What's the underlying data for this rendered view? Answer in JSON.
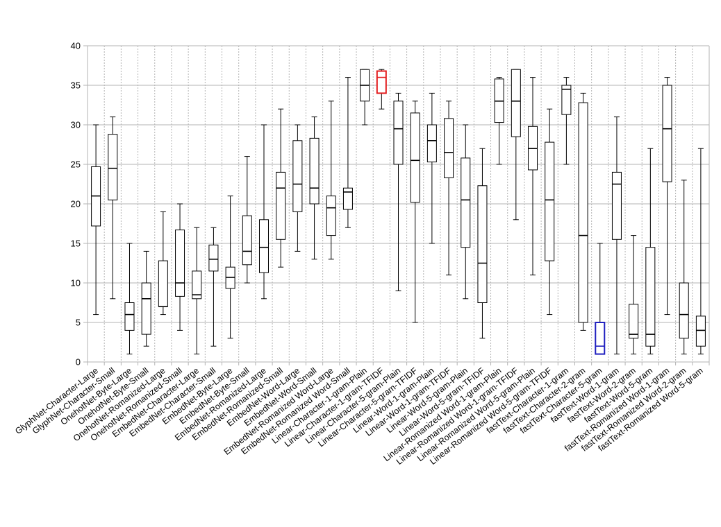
{
  "chart_data": {
    "type": "box",
    "ylim": [
      0,
      40
    ],
    "yticks": [
      0,
      5,
      10,
      15,
      20,
      25,
      30,
      35,
      40
    ],
    "grid": true,
    "highlight_colors": {
      "red": "#e31a1c",
      "blue": "#1f1fbf",
      "default": "#000000"
    },
    "boxes": [
      {
        "label": "GlyphNet-Character-Large",
        "min": 6,
        "q1": 17.2,
        "median": 21,
        "q3": 24.7,
        "max": 30
      },
      {
        "label": "GlyphNet-Character-Small",
        "min": 8,
        "q1": 20.5,
        "median": 24.5,
        "q3": 28.8,
        "max": 31
      },
      {
        "label": "OnehotNet-Byte-Large",
        "min": 1,
        "q1": 4,
        "median": 6,
        "q3": 7.5,
        "max": 15
      },
      {
        "label": "OnehotNet-Byte-Small",
        "min": 2,
        "q1": 3.5,
        "median": 8,
        "q3": 10,
        "max": 14
      },
      {
        "label": "OnehotNet-Romanized-Large",
        "min": 6,
        "q1": 7,
        "median": 7,
        "q3": 12.8,
        "max": 19
      },
      {
        "label": "OnehotNet-Romanized-Small",
        "min": 4,
        "q1": 8.3,
        "median": 10,
        "q3": 16.7,
        "max": 20
      },
      {
        "label": "EmbedNet-Character-Large",
        "min": 1,
        "q1": 8,
        "median": 8.5,
        "q3": 11.5,
        "max": 17
      },
      {
        "label": "EmbedNet-Character-Small",
        "min": 2,
        "q1": 11.5,
        "median": 13,
        "q3": 14.8,
        "max": 17
      },
      {
        "label": "EmbedNet-Byte-Large",
        "min": 3,
        "q1": 9.3,
        "median": 10.7,
        "q3": 12,
        "max": 21
      },
      {
        "label": "EmbedNet-Byte-Small",
        "min": 10,
        "q1": 12.3,
        "median": 14,
        "q3": 18.5,
        "max": 26
      },
      {
        "label": "EmbedNet-Romanized-Large",
        "min": 8,
        "q1": 11.3,
        "median": 14.5,
        "q3": 18,
        "max": 30
      },
      {
        "label": "EmbedNet-Romanized-Small",
        "min": 12,
        "q1": 15.5,
        "median": 22,
        "q3": 24,
        "max": 32
      },
      {
        "label": "EmbedNet-Word-Large",
        "min": 14,
        "q1": 19,
        "median": 22.5,
        "q3": 28,
        "max": 30
      },
      {
        "label": "EmbedNet-Word-Small",
        "min": 13,
        "q1": 20,
        "median": 22,
        "q3": 28.3,
        "max": 31
      },
      {
        "label": "EmbedNet-Romanized Word-Large",
        "min": 13,
        "q1": 16,
        "median": 19.5,
        "q3": 21,
        "max": 33
      },
      {
        "label": "EmbedNet-Romanized Word-Small",
        "min": 17,
        "q1": 19.3,
        "median": 21.5,
        "q3": 22,
        "max": 36
      },
      {
        "label": "Linear-Character-1-gram-Plain",
        "min": 30,
        "q1": 33,
        "median": 35,
        "q3": 37,
        "max": 37
      },
      {
        "label": "Linear-Character-1-gram-TFIDF",
        "min": 32,
        "q1": 34,
        "median": 36,
        "q3": 36.8,
        "max": 37,
        "color": "red"
      },
      {
        "label": "Linear-Character-5-gram-Plain",
        "min": 9,
        "q1": 25,
        "median": 29.5,
        "q3": 33,
        "max": 34
      },
      {
        "label": "Linear-Character-5-gram-TFIDF",
        "min": 5,
        "q1": 20.2,
        "median": 25.5,
        "q3": 31.5,
        "max": 33
      },
      {
        "label": "Linear-Word-1-gram-Plain",
        "min": 15,
        "q1": 25.3,
        "median": 28,
        "q3": 30,
        "max": 34
      },
      {
        "label": "Linear-Word-1-gram-TFIDF",
        "min": 11,
        "q1": 23.3,
        "median": 26.5,
        "q3": 30.8,
        "max": 33
      },
      {
        "label": "Linear-Word-5-gram-Plain",
        "min": 8,
        "q1": 14.5,
        "median": 20.5,
        "q3": 25.8,
        "max": 30
      },
      {
        "label": "Linear-Word-5-gram-TFIDF",
        "min": 3,
        "q1": 7.5,
        "median": 12.5,
        "q3": 22.3,
        "max": 27
      },
      {
        "label": "Linear-Romanized Word-1-gram-Plain",
        "min": 25,
        "q1": 30.3,
        "median": 33,
        "q3": 35.8,
        "max": 36
      },
      {
        "label": "Linear-Romanized Word-1-gram-TFIDF",
        "min": 18,
        "q1": 28.5,
        "median": 33,
        "q3": 37,
        "max": 37
      },
      {
        "label": "Linear-Romanized Word-5-gram-Plain",
        "min": 11,
        "q1": 24.3,
        "median": 27,
        "q3": 29.8,
        "max": 36
      },
      {
        "label": "Linear-Romanized Word-5-gram-TFIDF",
        "min": 6,
        "q1": 12.8,
        "median": 20.5,
        "q3": 27.8,
        "max": 32
      },
      {
        "label": "fastText-Character-1-gram",
        "min": 25,
        "q1": 31.3,
        "median": 34.5,
        "q3": 35,
        "max": 36
      },
      {
        "label": "fastText-Character-2-gram",
        "min": 4,
        "q1": 5,
        "median": 16,
        "q3": 32.8,
        "max": 34
      },
      {
        "label": "fastText-Character-5-gram",
        "min": 1,
        "q1": 1,
        "median": 2,
        "q3": 5,
        "max": 15,
        "color": "blue"
      },
      {
        "label": "fastText-Word-1-gram",
        "min": 1,
        "q1": 15.5,
        "median": 22.5,
        "q3": 24,
        "max": 31
      },
      {
        "label": "fastText-Word-2-gram",
        "min": 1,
        "q1": 3,
        "median": 3.5,
        "q3": 7.3,
        "max": 16
      },
      {
        "label": "fastText-Word-5-gram",
        "min": 1,
        "q1": 2,
        "median": 3.5,
        "q3": 14.5,
        "max": 27
      },
      {
        "label": "fastText-Romanized Word-1-gram",
        "min": 6,
        "q1": 22.8,
        "median": 29.5,
        "q3": 35,
        "max": 36
      },
      {
        "label": "fastText-Romanized Word-2-gram",
        "min": 1,
        "q1": 3,
        "median": 6,
        "q3": 10,
        "max": 23
      },
      {
        "label": "fastText-Romanized Word-5-gram",
        "min": 1,
        "q1": 2,
        "median": 4,
        "q3": 5.8,
        "max": 27
      }
    ]
  }
}
